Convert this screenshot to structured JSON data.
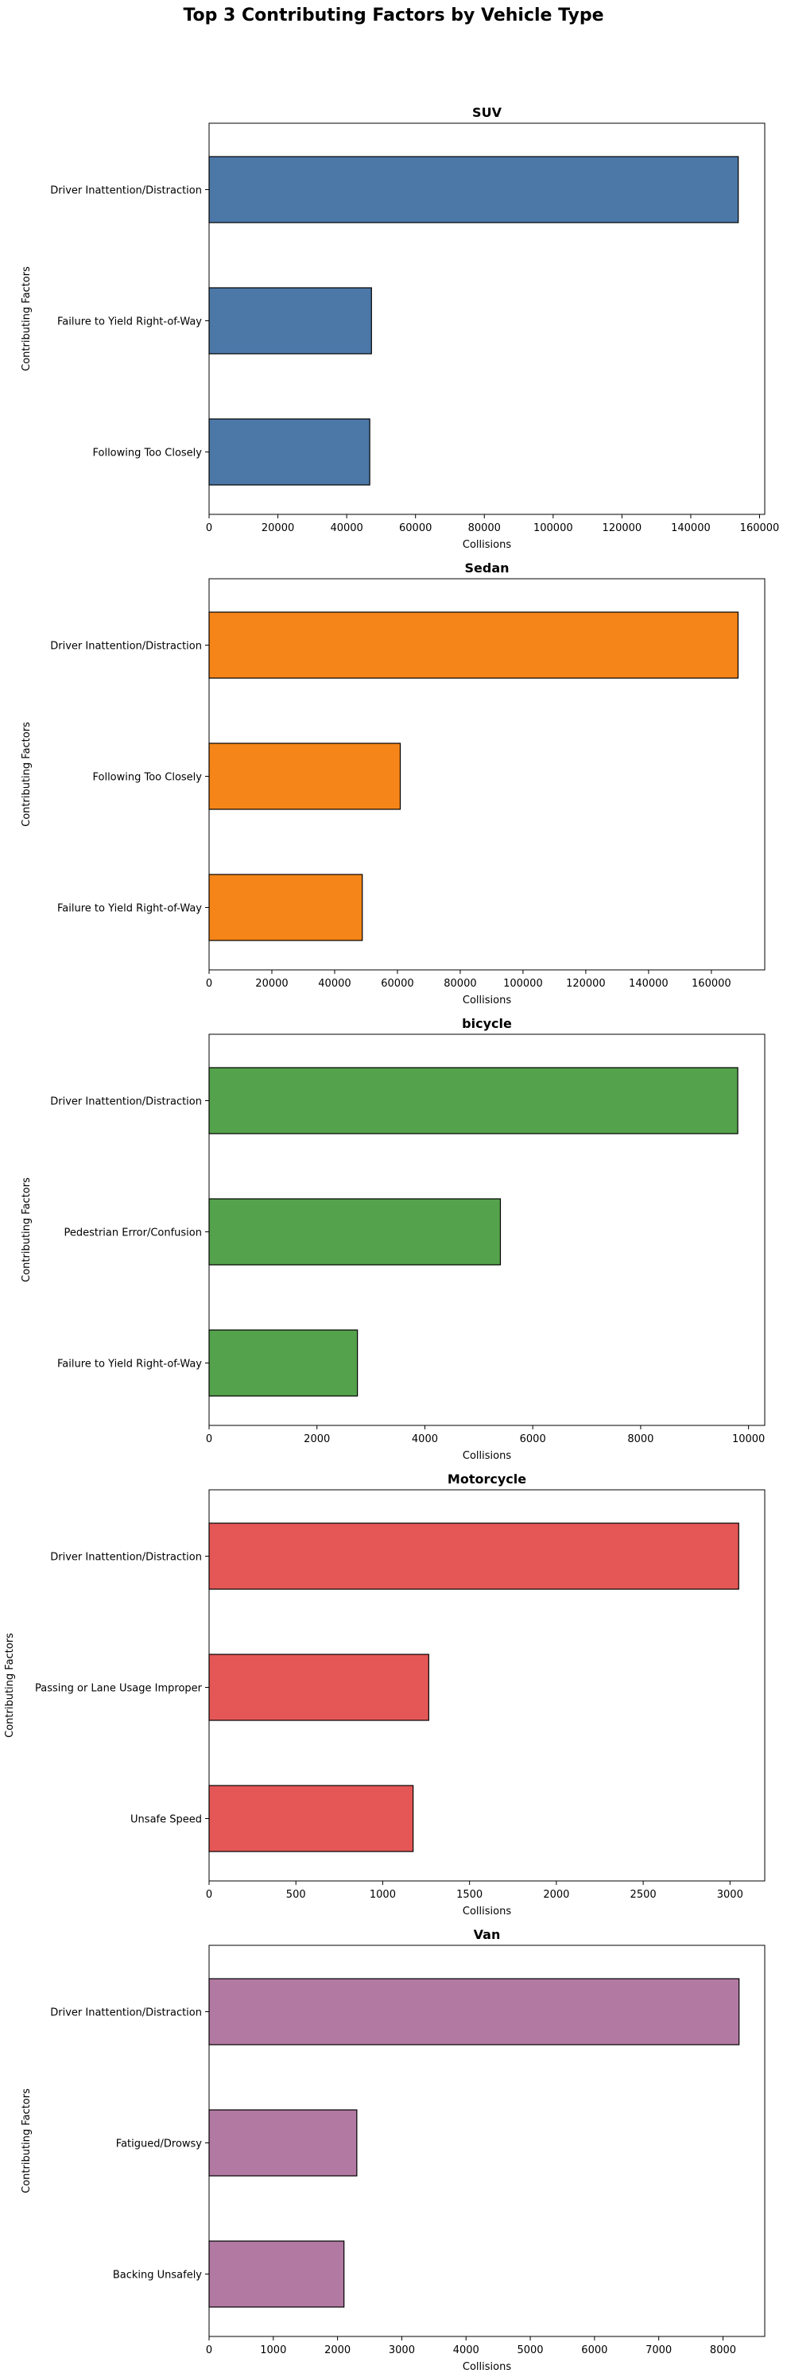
{
  "figure": {
    "title": "Top 3 Contributing Factors by Vehicle Type"
  },
  "chart_data": [
    {
      "type": "bar",
      "orientation": "horizontal",
      "title": "SUV",
      "xlabel": "Collisions",
      "ylabel": "Contributing Factors",
      "categories": [
        "Driver Inattention/Distraction",
        "Failure to Yield Right-of-Way",
        "Following Too Closely"
      ],
      "values": [
        153800,
        47200,
        46700
      ],
      "xlim": [
        0,
        161500
      ],
      "xticks": [
        0,
        20000,
        40000,
        60000,
        80000,
        100000,
        120000,
        140000,
        160000
      ],
      "color": "#4c78a8",
      "grid": false
    },
    {
      "type": "bar",
      "orientation": "horizontal",
      "title": "Sedan",
      "xlabel": "Collisions",
      "ylabel": "Contributing Factors",
      "categories": [
        "Driver Inattention/Distraction",
        "Following Too Closely",
        "Failure to Yield Right-of-Way"
      ],
      "values": [
        168500,
        60900,
        48800
      ],
      "xlim": [
        0,
        177000
      ],
      "xticks": [
        0,
        20000,
        40000,
        60000,
        80000,
        100000,
        120000,
        140000,
        160000
      ],
      "color": "#f58518",
      "grid": false
    },
    {
      "type": "bar",
      "orientation": "horizontal",
      "title": "bicycle",
      "xlabel": "Collisions",
      "ylabel": "Contributing Factors",
      "categories": [
        "Driver Inattention/Distraction",
        "Pedestrian Error/Confusion",
        "Failure to Yield Right-of-Way"
      ],
      "values": [
        9800,
        5400,
        2750
      ],
      "xlim": [
        0,
        10300
      ],
      "xticks": [
        0,
        2000,
        4000,
        6000,
        8000,
        10000
      ],
      "color": "#54a24b",
      "grid": false
    },
    {
      "type": "bar",
      "orientation": "horizontal",
      "title": "Motorcycle",
      "xlabel": "Collisions",
      "ylabel": "Contributing Factors",
      "categories": [
        "Driver Inattention/Distraction",
        "Passing or Lane Usage Improper",
        "Unsafe Speed"
      ],
      "values": [
        3050,
        1265,
        1175
      ],
      "xlim": [
        0,
        3200
      ],
      "xticks": [
        0,
        500,
        1000,
        1500,
        2000,
        2500,
        3000
      ],
      "color": "#e45756",
      "grid": false
    },
    {
      "type": "bar",
      "orientation": "horizontal",
      "title": "Van",
      "xlabel": "Collisions",
      "ylabel": "Contributing Factors",
      "categories": [
        "Driver Inattention/Distraction",
        "Fatigued/Drowsy",
        "Backing Unsafely"
      ],
      "values": [
        8250,
        2300,
        2100
      ],
      "xlim": [
        0,
        8650
      ],
      "xticks": [
        0,
        1000,
        2000,
        3000,
        4000,
        5000,
        6000,
        7000,
        8000
      ],
      "color": "#b279a2",
      "grid": false
    }
  ]
}
